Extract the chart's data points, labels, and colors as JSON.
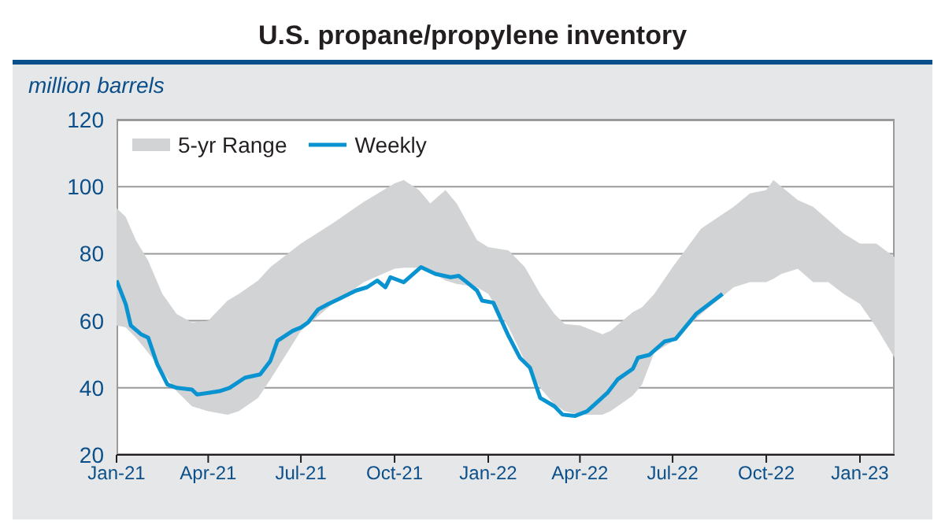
{
  "chart_data": {
    "type": "line",
    "title": "U.S. propane/propylene inventory",
    "ylabel": "million barrels",
    "xlim": [
      "2021-01-01",
      "2023-02-04"
    ],
    "xticks": [
      {
        "value": "2021-01-01",
        "label": "Jan-21"
      },
      {
        "value": "2021-04-01",
        "label": "Apr-21"
      },
      {
        "value": "2021-07-01",
        "label": "Jul-21"
      },
      {
        "value": "2021-10-01",
        "label": "Oct-21"
      },
      {
        "value": "2022-01-01",
        "label": "Jan-22"
      },
      {
        "value": "2022-04-01",
        "label": "Apr-22"
      },
      {
        "value": "2022-07-01",
        "label": "Jul-22"
      },
      {
        "value": "2022-10-01",
        "label": "Oct-22"
      },
      {
        "value": "2023-01-01",
        "label": "Jan-23"
      }
    ],
    "ylim": [
      20,
      120
    ],
    "yticks": [
      20,
      40,
      60,
      80,
      100,
      120
    ],
    "grid": "y",
    "legend": "top left",
    "marker": "none",
    "line_style": "solid",
    "series": [
      {
        "name": "5-yr Range",
        "type": "area",
        "color": "#d1d3d4",
        "x": [
          "2021-01-01",
          "2021-01-10",
          "2021-01-20",
          "2021-02-01",
          "2021-02-15",
          "2021-03-01",
          "2021-03-16",
          "2021-04-01",
          "2021-04-20",
          "2021-05-01",
          "2021-05-20",
          "2021-06-01",
          "2021-07-01",
          "2021-08-01",
          "2021-09-01",
          "2021-10-01",
          "2021-10-10",
          "2021-10-25",
          "2021-11-05",
          "2021-11-20",
          "2021-12-01",
          "2021-12-21",
          "2022-01-01",
          "2022-01-21",
          "2022-02-06",
          "2022-02-21",
          "2022-03-07",
          "2022-03-17",
          "2022-04-01",
          "2022-04-23",
          "2022-05-01",
          "2022-05-23",
          "2022-06-01",
          "2022-06-13",
          "2022-07-01",
          "2022-07-29",
          "2022-08-30",
          "2022-09-15",
          "2022-10-01",
          "2022-10-08",
          "2022-10-16",
          "2022-11-01",
          "2022-11-16",
          "2022-12-01",
          "2022-12-16",
          "2023-01-01",
          "2023-01-17",
          "2023-02-04"
        ],
        "values": [
          null,
          null,
          null,
          null,
          null,
          null,
          null,
          null,
          null,
          null,
          null,
          null,
          null,
          null,
          null,
          null,
          null,
          null,
          null,
          null,
          null,
          null,
          null,
          null,
          null,
          null,
          null,
          null,
          null,
          null,
          null,
          null,
          null,
          null,
          null,
          null,
          null,
          null,
          null,
          null,
          null,
          null,
          null,
          null,
          null,
          null,
          null,
          null
        ],
        "upper": [
          93.6,
          91,
          84,
          78,
          68,
          62,
          59.5,
          60,
          66,
          68,
          72,
          76,
          83,
          89,
          95.5,
          101,
          102,
          99,
          95,
          99,
          95,
          84,
          82,
          81,
          76,
          68,
          62,
          59,
          58.6,
          56,
          57,
          62.6,
          64,
          68,
          76,
          87.5,
          94,
          98,
          99,
          102,
          100,
          96,
          94,
          90,
          86,
          83,
          83,
          79
        ],
        "lower": [
          58.6,
          58,
          55,
          50.5,
          45,
          39,
          34.5,
          33,
          32,
          33,
          37,
          42.5,
          57,
          65,
          71.5,
          75.5,
          75.8,
          75.8,
          74.7,
          72,
          71,
          70,
          68,
          58,
          48,
          40,
          35,
          33,
          32,
          32,
          33,
          37.7,
          41,
          50.5,
          53.8,
          62,
          70,
          71.5,
          71.5,
          72.5,
          74,
          75.5,
          71.5,
          71.5,
          68,
          65,
          58,
          49
        ]
      },
      {
        "name": "Weekly",
        "color": "#0a93d1",
        "x": [
          "2021-01-01",
          "2021-01-10",
          "2021-01-15",
          "2021-01-25",
          "2021-02-01",
          "2021-02-10",
          "2021-02-20",
          "2021-03-01",
          "2021-03-16",
          "2021-03-21",
          "2021-04-01",
          "2021-04-12",
          "2021-04-22",
          "2021-05-07",
          "2021-05-22",
          "2021-06-01",
          "2021-06-08",
          "2021-06-23",
          "2021-07-01",
          "2021-07-08",
          "2021-07-18",
          "2021-07-28",
          "2021-08-08",
          "2021-08-24",
          "2021-09-04",
          "2021-09-14",
          "2021-09-22",
          "2021-09-27",
          "2021-10-10",
          "2021-10-27",
          "2021-11-10",
          "2021-11-25",
          "2021-12-03",
          "2021-12-11",
          "2021-12-21",
          "2021-12-26",
          "2022-01-06",
          "2022-01-21",
          "2022-02-01",
          "2022-02-11",
          "2022-02-21",
          "2022-03-07",
          "2022-03-15",
          "2022-03-27",
          "2022-04-08",
          "2022-04-28",
          "2022-05-08",
          "2022-05-23",
          "2022-05-28",
          "2022-06-08",
          "2022-06-23",
          "2022-07-04",
          "2022-07-24",
          "2022-08-19"
        ],
        "values": [
          72,
          65,
          58.6,
          56,
          55,
          47,
          41,
          40,
          39.5,
          38,
          38.5,
          39,
          40,
          43,
          44,
          48,
          54,
          57,
          58,
          59.5,
          63.4,
          65,
          66.6,
          69,
          70,
          72,
          70,
          73,
          71.5,
          76,
          74,
          73,
          73.4,
          71.5,
          69,
          66,
          65.4,
          55.4,
          49,
          46,
          37,
          34.5,
          32,
          31.6,
          33,
          38.5,
          42.5,
          45.7,
          49,
          49.8,
          53.8,
          54.6,
          62,
          68
        ]
      }
    ]
  }
}
